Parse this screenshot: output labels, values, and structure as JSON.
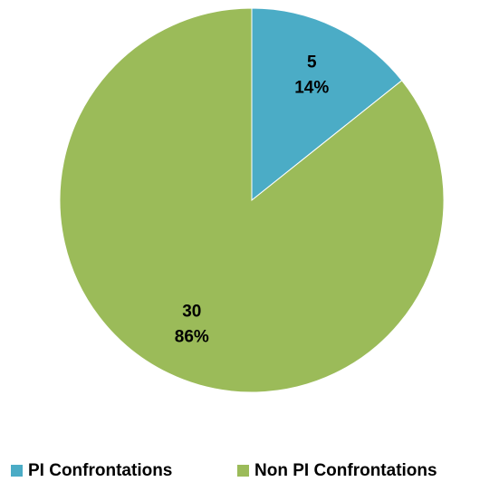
{
  "chart_data": {
    "type": "pie",
    "categories": [
      "PI Confrontations",
      "Non PI Confrontations"
    ],
    "values": [
      5,
      30
    ],
    "percent_labels": [
      "14%",
      "86%"
    ],
    "colors": [
      "#4bacc6",
      "#9bbb59"
    ],
    "legend": "bottom"
  }
}
